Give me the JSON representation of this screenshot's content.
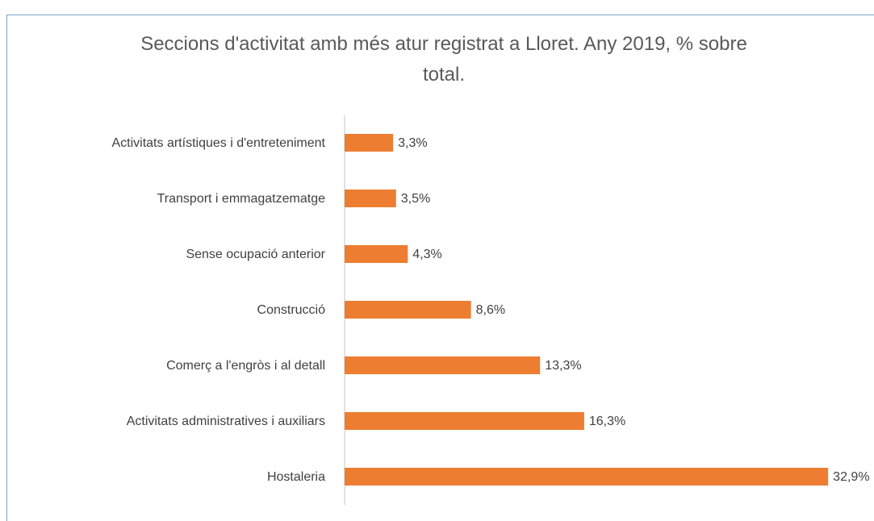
{
  "chart_data": {
    "type": "bar",
    "orientation": "horizontal",
    "title": "Seccions d'activitat amb més atur registrat a Lloret. Any 2019, % sobre total.",
    "categories": [
      "Activitats artístiques i d'entreteniment",
      "Transport i emmagatzematge",
      "Sense ocupació anterior",
      "Construcció",
      "Comerç a l'engròs i al detall",
      "Activitats administratives i auxiliars",
      "Hostaleria"
    ],
    "values": [
      3.3,
      3.5,
      4.3,
      8.6,
      13.3,
      16.3,
      32.9
    ],
    "value_labels": [
      "3,3%",
      "3,5%",
      "4,3%",
      "8,6%",
      "13,3%",
      "16,3%",
      "32,9%"
    ],
    "color": "#ed7d31",
    "xlim": [
      0,
      33
    ]
  }
}
